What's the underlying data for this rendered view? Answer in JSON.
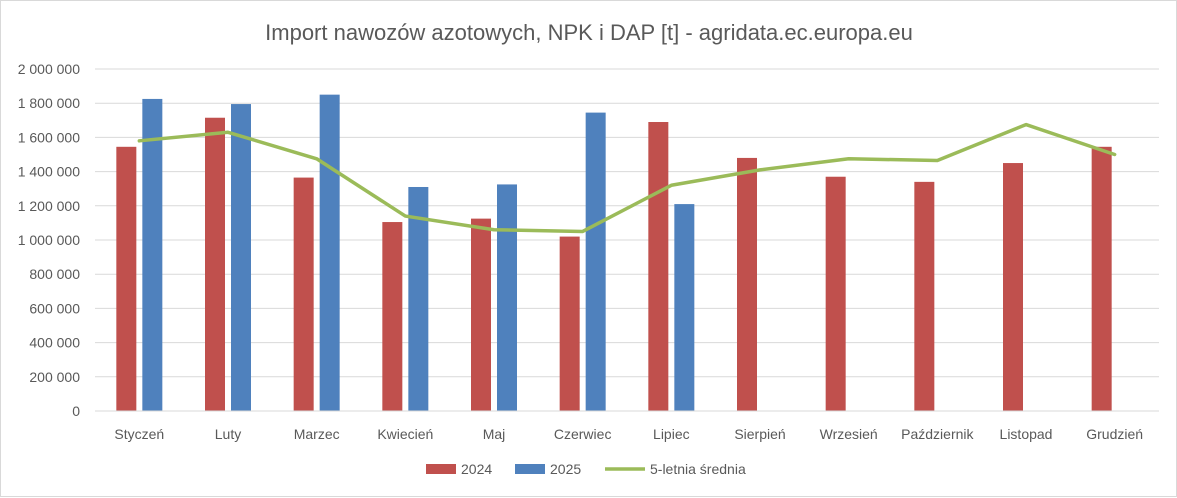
{
  "chart_data": {
    "type": "bar",
    "title": "Import nawozów azotowych, NPK i DAP [t] - agridata.ec.europa.eu",
    "categories": [
      "Styczeń",
      "Luty",
      "Marzec",
      "Kwiecień",
      "Maj",
      "Czerwiec",
      "Lipiec",
      "Sierpień",
      "Wrzesień",
      "Październik",
      "Listopad",
      "Grudzień"
    ],
    "yticks": [
      "0",
      "200 000",
      "400 000",
      "600 000",
      "800 000",
      "1 000 000",
      "1 200 000",
      "1 400 000",
      "1 600 000",
      "1 800 000",
      "2 000 000"
    ],
    "ylim": [
      0,
      2000000
    ],
    "grid": true,
    "legend_position": "bottom",
    "series": [
      {
        "name": "2024",
        "kind": "bar",
        "color": "#c0504d",
        "values": [
          1545000,
          1715000,
          1365000,
          1105000,
          1125000,
          1020000,
          1690000,
          1480000,
          1370000,
          1340000,
          1450000,
          1545000
        ]
      },
      {
        "name": "2025",
        "kind": "bar",
        "color": "#4f81bd",
        "values": [
          1825000,
          1795000,
          1850000,
          1310000,
          1325000,
          1745000,
          1210000,
          null,
          null,
          null,
          null,
          null
        ]
      },
      {
        "name": "5-letnia średnia",
        "kind": "line",
        "color": "#9bbb59",
        "values": [
          1580000,
          1630000,
          1475000,
          1140000,
          1060000,
          1050000,
          1320000,
          1410000,
          1475000,
          1465000,
          1675000,
          1500000
        ]
      }
    ]
  }
}
